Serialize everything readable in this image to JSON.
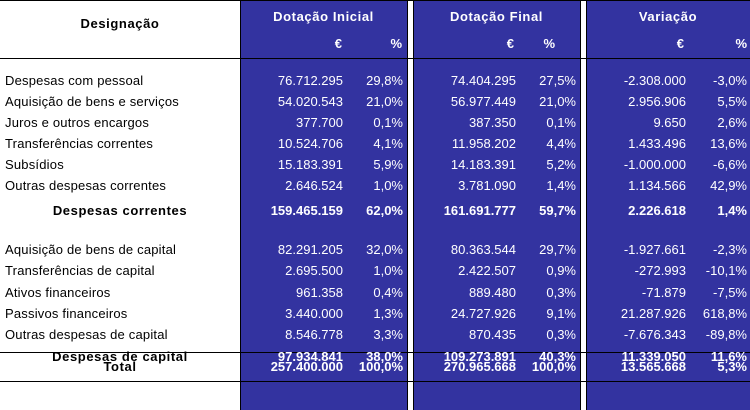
{
  "header": {
    "designacao": "Designação",
    "dotacao_inicial": "Dotação Inicial",
    "dotacao_final": "Dotação Final",
    "variacao": "Variação",
    "euro": "€",
    "pct": "%"
  },
  "rows": [
    {
      "label": "Despesas com pessoal",
      "ini": "76.712.295",
      "ini_p": "29,8%",
      "fin": "74.404.295",
      "fin_p": "27,5%",
      "var": "-2.308.000",
      "var_p": "-3,0%"
    },
    {
      "label": "Aquisição de bens e serviços",
      "ini": "54.020.543",
      "ini_p": "21,0%",
      "fin": "56.977.449",
      "fin_p": "21,0%",
      "var": "2.956.906",
      "var_p": "5,5%"
    },
    {
      "label": "Juros e outros encargos",
      "ini": "377.700",
      "ini_p": "0,1%",
      "fin": "387.350",
      "fin_p": "0,1%",
      "var": "9.650",
      "var_p": "2,6%"
    },
    {
      "label": "Transferências correntes",
      "ini": "10.524.706",
      "ini_p": "4,1%",
      "fin": "11.958.202",
      "fin_p": "4,4%",
      "var": "1.433.496",
      "var_p": "13,6%"
    },
    {
      "label": "Subsídios",
      "ini": "15.183.391",
      "ini_p": "5,9%",
      "fin": "14.183.391",
      "fin_p": "5,2%",
      "var": "-1.000.000",
      "var_p": "-6,6%"
    },
    {
      "label": "Outras despesas correntes",
      "ini": "2.646.524",
      "ini_p": "1,0%",
      "fin": "3.781.090",
      "fin_p": "1,4%",
      "var": "1.134.566",
      "var_p": "42,9%"
    },
    {
      "label": "Despesas correntes",
      "ini": "159.465.159",
      "ini_p": "62,0%",
      "fin": "161.691.777",
      "fin_p": "59,7%",
      "var": "2.226.618",
      "var_p": "1,4%"
    },
    {
      "label": "Aquisição de bens de capital",
      "ini": "82.291.205",
      "ini_p": "32,0%",
      "fin": "80.363.544",
      "fin_p": "29,7%",
      "var": "-1.927.661",
      "var_p": "-2,3%"
    },
    {
      "label": "Transferências de capital",
      "ini": "2.695.500",
      "ini_p": "1,0%",
      "fin": "2.422.507",
      "fin_p": "0,9%",
      "var": "-272.993",
      "var_p": "-10,1%"
    },
    {
      "label": "Ativos financeiros",
      "ini": "961.358",
      "ini_p": "0,4%",
      "fin": "889.480",
      "fin_p": "0,3%",
      "var": "-71.879",
      "var_p": "-7,5%"
    },
    {
      "label": "Passivos financeiros",
      "ini": "3.440.000",
      "ini_p": "1,3%",
      "fin": "24.727.926",
      "fin_p": "9,1%",
      "var": "21.287.926",
      "var_p": "618,8%"
    },
    {
      "label": "Outras despesas de capital",
      "ini": "8.546.778",
      "ini_p": "3,3%",
      "fin": "870.435",
      "fin_p": "0,3%",
      "var": "-7.676.343",
      "var_p": "-89,8%"
    },
    {
      "label": "Despesas de capital",
      "ini": "97.934.841",
      "ini_p": "38,0%",
      "fin": "109.273.891",
      "fin_p": "40,3%",
      "var": "11.339.050",
      "var_p": "11,6%"
    },
    {
      "label": "Total",
      "ini": "257.400.000",
      "ini_p": "100,0%",
      "fin": "270.965.668",
      "fin_p": "100,0%",
      "var": "13.565.668",
      "var_p": "5,3%"
    }
  ]
}
